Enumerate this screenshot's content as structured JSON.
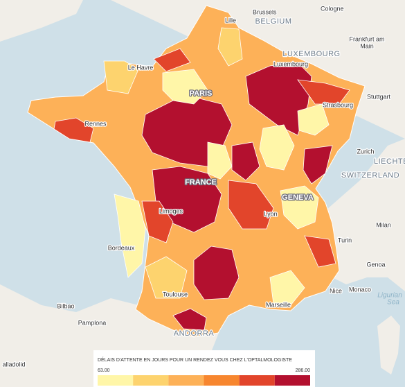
{
  "map": {
    "labels": [
      "Brussels",
      "Cologne",
      "Lille",
      "BELGIUM",
      "Frankfurt am",
      "Main",
      "LUXEMBOURG",
      "Luxembourg",
      "Le Havre",
      "PARIS",
      "Stuttgart",
      "Strasbourg",
      "Rennes",
      "Zurich",
      "LIECHTE",
      "SWITZERLAND",
      "FRANCE",
      "GENEVA",
      "Limoges",
      "Lyon",
      "Milan",
      "Turin",
      "Bordeaux",
      "Genoa",
      "Nice",
      "Monaco",
      "Ligurian",
      "Sea",
      "Toulouse",
      "Marseille",
      "Bilbao",
      "Pamplona",
      "ANDORRA",
      "alladolid"
    ]
  },
  "legend": {
    "title": "DÉLAIS D'ATTENTE EN JOURS POUR UN RENDEZ VOUS CHEZ L'OPTALMOLOGISTE",
    "min": {
      "value": 63,
      "label": "63.00"
    },
    "max": {
      "value": 286,
      "label": "286.00"
    },
    "colors": [
      "#fff6a8",
      "#fdd36e",
      "#fdb158",
      "#f7862f",
      "#e2452b",
      "#b3102f"
    ]
  }
}
